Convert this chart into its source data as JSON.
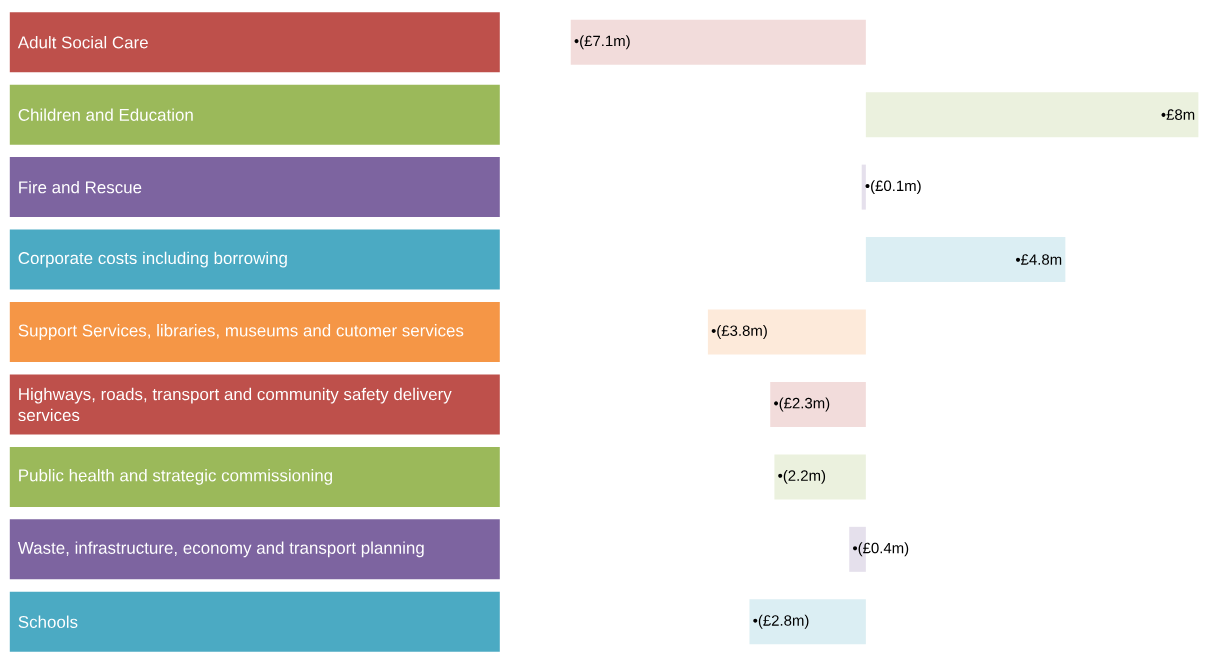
{
  "chart_data": {
    "type": "bar",
    "orientation": "horizontal",
    "categories": [
      "Adult Social Care",
      "Children and Education",
      "Fire and Rescue",
      "Corporate costs including borrowing",
      "Support Services, libraries, museums and cutomer services",
      "Highways, roads, transport and community safety delivery services",
      "Public health and strategic commissioning",
      "Waste, infrastructure, economy and transport planning",
      "Schools"
    ],
    "values": [
      -7.1,
      8,
      -0.1,
      4.8,
      -3.8,
      -2.3,
      -2.2,
      -0.4,
      -2.8
    ],
    "value_labels": [
      "•(£7.1m)",
      "•£8m",
      "•(£0.1m)",
      "•£4.8m",
      "•(£3.8m)",
      "•(£2.3m)",
      "•(2.2m)",
      "•(£0.4m)",
      "•(£2.8m)"
    ],
    "colors": [
      "#f2dcdb",
      "#ebf1de",
      "#e5e0ec",
      "#dbeef3",
      "#fdeada",
      "#f2dcdb",
      "#ebf1de",
      "#e5e0ec",
      "#dbeef3"
    ]
  }
}
